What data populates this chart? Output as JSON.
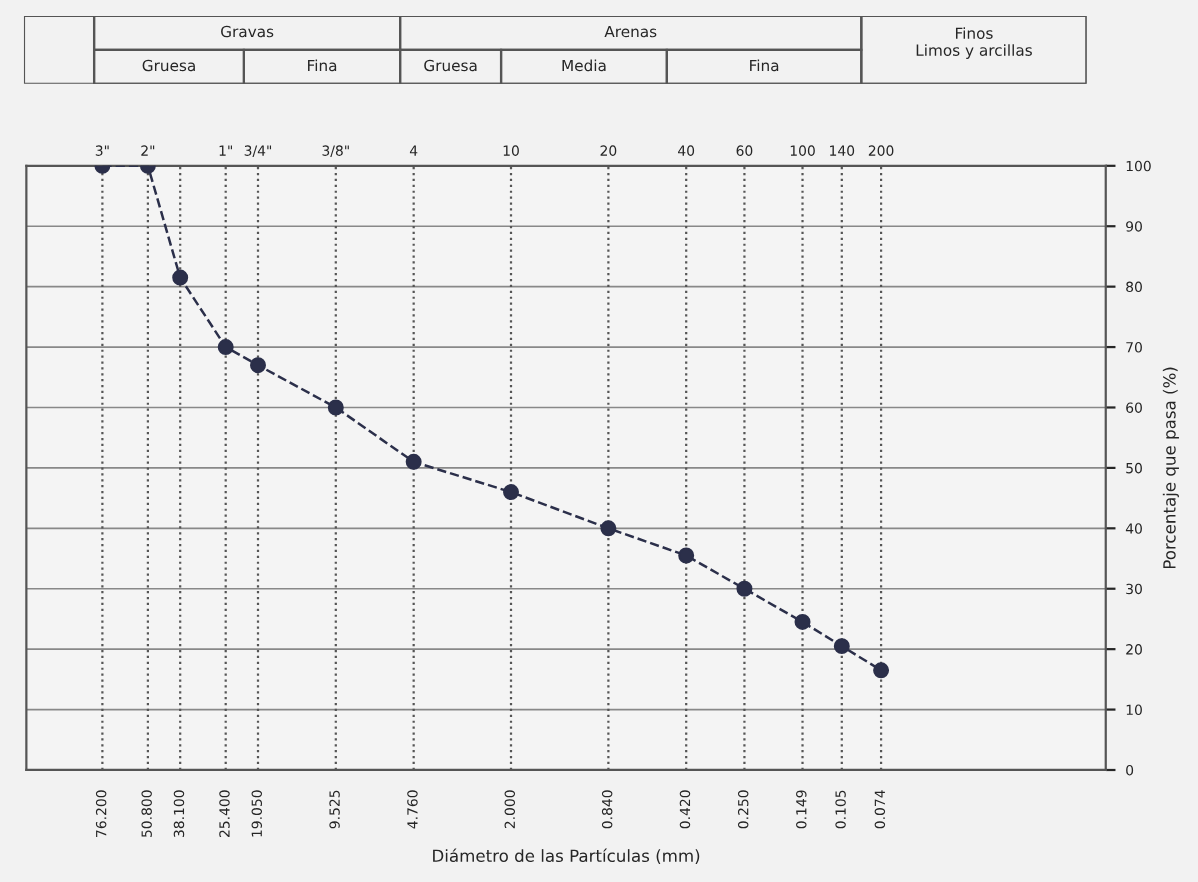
{
  "chart_data": {
    "type": "line",
    "xlabel": "Diámetro de las Partículas (mm)",
    "ylabel": "Porcentaje que pasa (%)",
    "annotations": [
      "Gravas",
      "Gruesa",
      "Fina",
      "Arenas",
      "Gruesa",
      "Media",
      "Fina",
      "Finos",
      "Limos y arcillas",
      "3\"",
      "2\"",
      "1\"",
      "3/4\"",
      "3/8\"",
      "4",
      "10",
      "20",
      "40",
      "60",
      "100",
      "140",
      "200"
    ],
    "ref_lines": [
      {
        "axis": "x",
        "value": 76.2
      },
      {
        "axis": "x",
        "value": 50.8
      },
      {
        "axis": "x",
        "value": 38.1
      },
      {
        "axis": "x",
        "value": 25.4
      },
      {
        "axis": "x",
        "value": 19.05
      },
      {
        "axis": "x",
        "value": 9.525
      },
      {
        "axis": "x",
        "value": 4.76
      },
      {
        "axis": "x",
        "value": 2.0
      },
      {
        "axis": "x",
        "value": 0.84
      },
      {
        "axis": "x",
        "value": 0.42
      },
      {
        "axis": "x",
        "value": 0.25
      },
      {
        "axis": "x",
        "value": 0.149
      },
      {
        "axis": "x",
        "value": 0.105
      },
      {
        "axis": "x",
        "value": 0.074
      }
    ],
    "x": [
      76.2,
      50.8,
      38.1,
      25.4,
      19.05,
      9.525,
      4.76,
      2.0,
      0.84,
      0.42,
      0.25,
      0.149,
      0.105,
      0.074
    ],
    "series": [
      {
        "color": "#2b2f4a",
        "values": [
          100,
          100,
          81.5,
          70,
          67,
          60,
          51,
          46,
          40,
          35.5,
          30,
          24.5,
          20.5,
          16.5
        ]
      }
    ],
    "log": "x",
    "xlim": [
      150,
      0.01
    ],
    "xticks": [
      {
        "value": 76.2,
        "label": "76.200"
      },
      {
        "value": 50.8,
        "label": "50.800"
      },
      {
        "value": 38.1,
        "label": "38.100"
      },
      {
        "value": 25.4,
        "label": "25.400"
      },
      {
        "value": 19.05,
        "label": "19.050"
      },
      {
        "value": 9.525,
        "label": "9.525"
      },
      {
        "value": 4.76,
        "label": "4.760"
      },
      {
        "value": 2.0,
        "label": "2.000"
      },
      {
        "value": 0.84,
        "label": "0.840"
      },
      {
        "value": 0.42,
        "label": "0.420"
      },
      {
        "value": 0.25,
        "label": "0.250"
      },
      {
        "value": 0.149,
        "label": "0.149"
      },
      {
        "value": 0.105,
        "label": "0.105"
      },
      {
        "value": 0.074,
        "label": "0.074"
      }
    ],
    "ylim": [
      0,
      100
    ],
    "yticks": [
      0,
      10,
      20,
      30,
      40,
      50,
      60,
      70,
      80,
      90,
      100
    ],
    "grid": "y",
    "marker": "circle",
    "line_style": "dashed",
    "legend": false
  }
}
